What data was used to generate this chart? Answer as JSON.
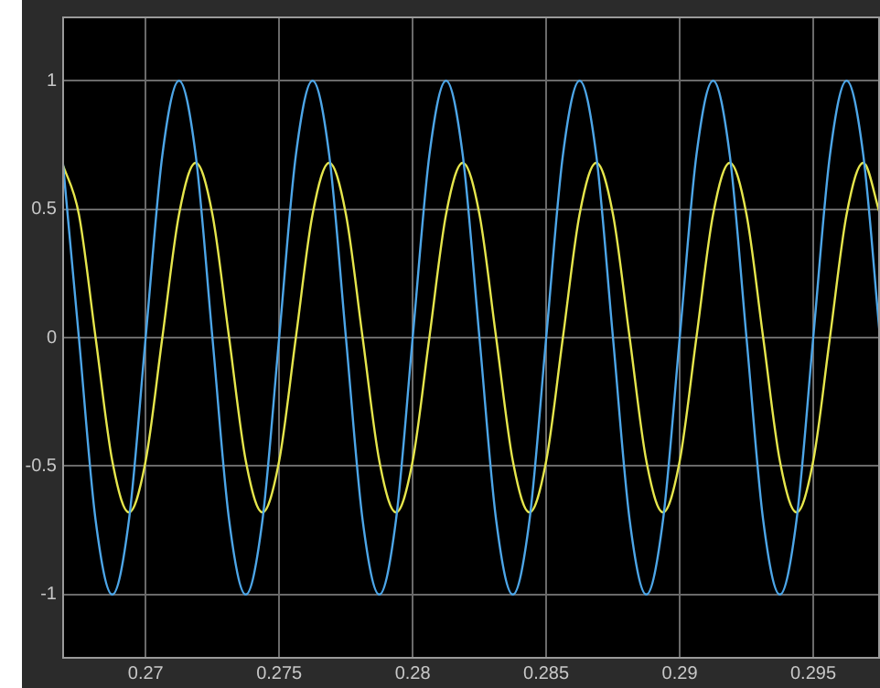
{
  "chart_data": {
    "type": "line",
    "x": [
      0.266875,
      0.2675,
      0.268125,
      0.26875,
      0.269375,
      0.27,
      0.270625,
      0.27125,
      0.271875,
      0.2725,
      0.273125,
      0.27375,
      0.274375,
      0.275,
      0.275625,
      0.27625,
      0.276875,
      0.2775,
      0.278125,
      0.27875,
      0.279375,
      0.28,
      0.280625,
      0.28125,
      0.281875,
      0.2825,
      0.283125,
      0.28375,
      0.284375,
      0.285,
      0.285625,
      0.28625,
      0.286875,
      0.2875,
      0.288125,
      0.28875,
      0.289375,
      0.29,
      0.290625,
      0.29125,
      0.291875,
      0.2925,
      0.293125,
      0.29375,
      0.294375,
      0.295,
      0.295625,
      0.29625,
      0.296875,
      0.2975
    ],
    "series": [
      {
        "color": "#4da6e8",
        "values": [
          0.71,
          0,
          -0.71,
          -1,
          -0.71,
          0,
          0.71,
          1,
          0.71,
          0,
          -0.71,
          -1,
          -0.71,
          0,
          0.71,
          1,
          0.71,
          0,
          -0.71,
          -1,
          -0.71,
          0,
          0.71,
          1,
          0.71,
          0,
          -0.71,
          -1,
          -0.71,
          0,
          0.71,
          1,
          0.71,
          0,
          -0.71,
          -1,
          -0.71,
          0,
          0.71,
          1,
          0.71,
          0,
          -0.71,
          -1,
          -0.71,
          0,
          0.71,
          1,
          0.71,
          0
        ]
      },
      {
        "color": "#e6e64c",
        "values": [
          0.68,
          0.48,
          0,
          -0.48,
          -0.68,
          -0.48,
          0,
          0.48,
          0.68,
          0.48,
          0,
          -0.48,
          -0.68,
          -0.48,
          0,
          0.48,
          0.68,
          0.48,
          0,
          -0.48,
          -0.68,
          -0.48,
          0,
          0.48,
          0.68,
          0.48,
          0,
          -0.48,
          -0.68,
          -0.48,
          0,
          0.48,
          0.68,
          0.48,
          0,
          -0.48,
          -0.68,
          -0.48,
          0,
          0.48,
          0.68,
          0.48,
          0,
          -0.48,
          -0.68,
          -0.48,
          0,
          0.48,
          0.68,
          0.48
        ]
      }
    ],
    "xlim": [
      0.266875,
      0.2975
    ],
    "ylim": [
      -1.25,
      1.25
    ],
    "xticks": [
      0.27,
      0.275,
      0.28,
      0.285,
      0.29,
      0.295
    ],
    "yticks": [
      -1,
      -0.5,
      0,
      0.5,
      1
    ],
    "grid": true
  }
}
